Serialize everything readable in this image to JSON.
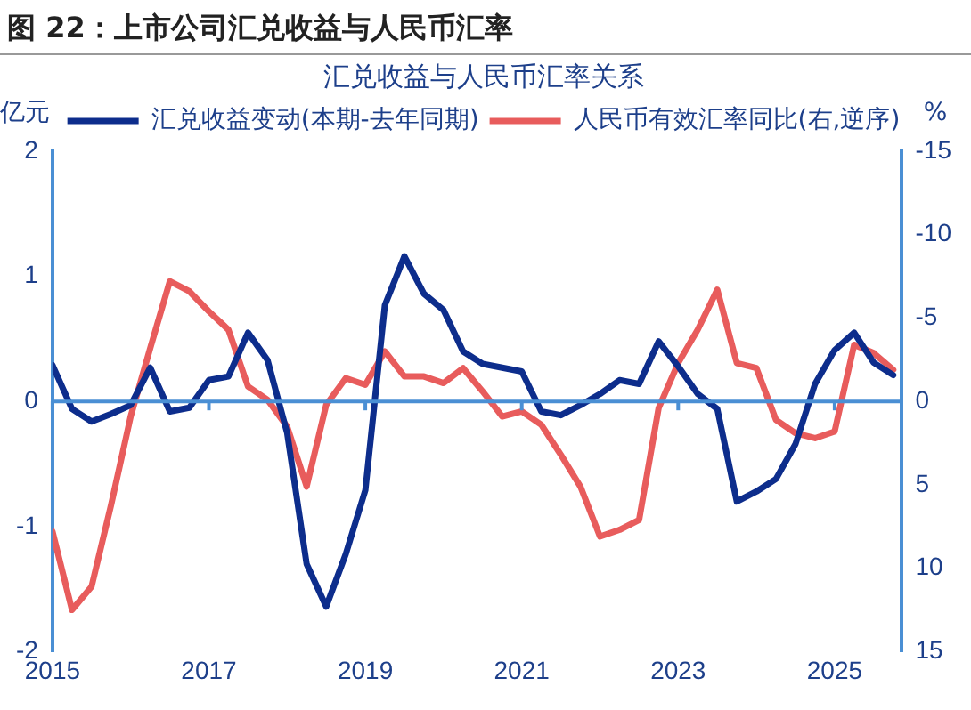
{
  "chart_data": {
    "type": "line",
    "title": "图 22：上市公司汇兑收益与人民币汇率",
    "subtitle": "汇兑收益与人民币汇率关系",
    "ylabel": "亿元",
    "y2label": "%",
    "x": [
      2015,
      2015.25,
      2015.5,
      2015.75,
      2016,
      2016.25,
      2016.5,
      2016.75,
      2017,
      2017.25,
      2017.5,
      2017.75,
      2018,
      2018.25,
      2018.5,
      2018.75,
      2019,
      2019.25,
      2019.5,
      2019.75,
      2020,
      2020.25,
      2020.5,
      2020.75,
      2021,
      2021.25,
      2021.5,
      2021.75,
      2022,
      2022.25,
      2022.5,
      2022.75,
      2023,
      2023.25,
      2023.5,
      2023.75,
      2024,
      2024.25,
      2024.5,
      2024.75,
      2025,
      2025.25,
      2025.5,
      2025.75
    ],
    "series": [
      {
        "name": "汇兑收益变动(本期-去年同期)",
        "color": "#0d2d8c",
        "values": [
          0.29,
          -0.06,
          -0.16,
          -0.1,
          -0.03,
          0.27,
          -0.08,
          -0.05,
          0.17,
          0.2,
          0.55,
          0.33,
          -0.25,
          -1.3,
          -1.64,
          -1.22,
          -0.71,
          0.77,
          1.16,
          0.86,
          0.73,
          0.4,
          0.3,
          0.27,
          0.24,
          -0.08,
          -0.11,
          -0.03,
          0.06,
          0.17,
          0.14,
          0.48,
          0.28,
          0.06,
          -0.06,
          -0.8,
          -0.72,
          -0.62,
          -0.34,
          0.14,
          0.41,
          0.55,
          0.31,
          0.21
        ]
      },
      {
        "name": "人民币有效汇率同比(右,逆序)",
        "color": "#e85c5c",
        "axis": "y2",
        "values": [
          7.8,
          12.5,
          11.1,
          6.2,
          0.9,
          -3.2,
          -7.2,
          -6.6,
          -5.4,
          -4.3,
          -0.9,
          -0.1,
          1.5,
          5.1,
          0.2,
          -1.4,
          -1,
          -3,
          -1.5,
          -1.5,
          -1.1,
          -2,
          -0.6,
          0.9,
          0.6,
          1.4,
          3.2,
          5.1,
          8.1,
          7.7,
          7.1,
          0.4,
          -2.3,
          -4.3,
          -6.7,
          -2.3,
          -2,
          1.1,
          1.9,
          2.2,
          1.8,
          -3.4,
          -2.9,
          -1.9
        ]
      }
    ],
    "xlim": [
      2015,
      2025.85
    ],
    "xticks": [
      2015,
      2017,
      2019,
      2021,
      2023,
      2025
    ],
    "ylim": [
      -2,
      2
    ],
    "yticks": [
      -2,
      -1,
      0,
      1,
      2
    ],
    "y2lim": [
      15,
      -15
    ],
    "y2ticks": [
      15,
      10,
      5,
      0,
      -5,
      -10,
      -15
    ],
    "ref_lines": [
      {
        "axis": "y",
        "value": 0,
        "color": "#4a8fd4"
      }
    ],
    "grid": false,
    "legend": "top",
    "marker": "none",
    "line_style": "solid"
  }
}
